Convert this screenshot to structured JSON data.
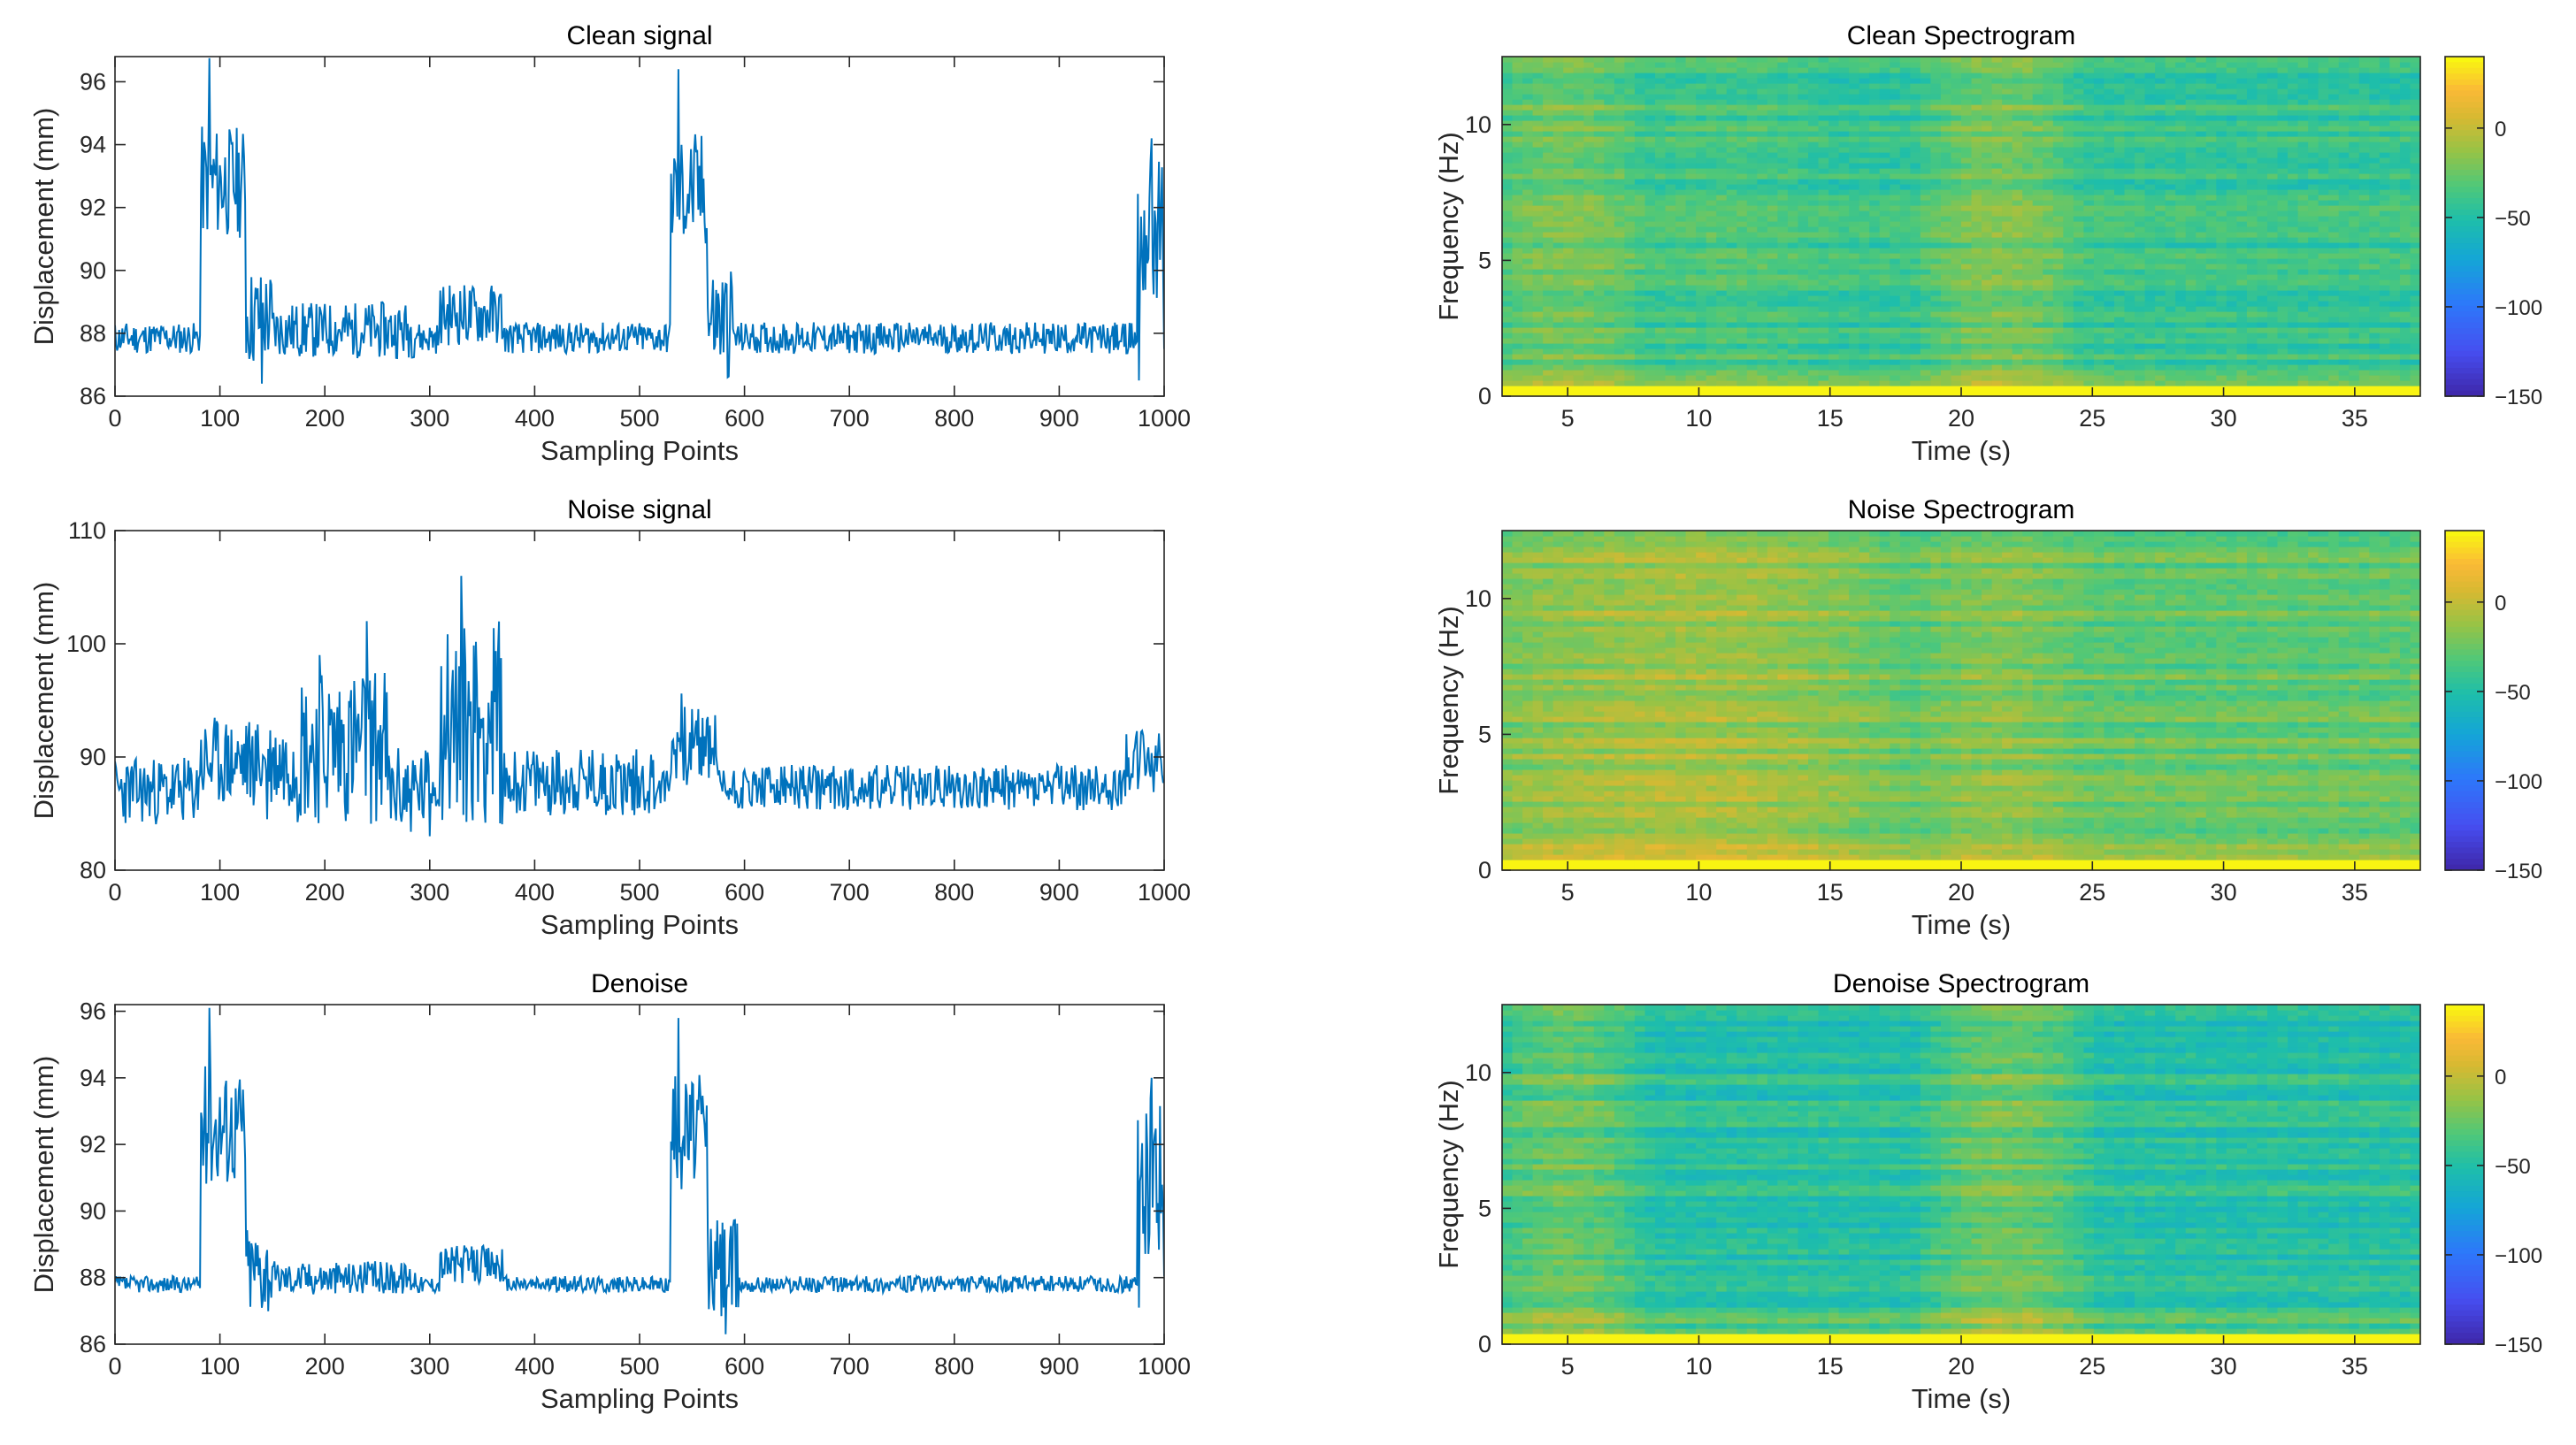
{
  "figure": {
    "description_colors": {
      "line": "#0072BD",
      "background": "#FFFFFF",
      "axes": "#262626"
    }
  },
  "chart_data": [
    {
      "id": "clean_signal",
      "type": "line",
      "title": "Clean signal",
      "xlabel": "Sampling Points",
      "ylabel": "Displacement (mm)",
      "xlim": [
        0,
        1000
      ],
      "ylim": [
        86,
        96.8
      ],
      "xticks": [
        "0",
        "100",
        "200",
        "300",
        "400",
        "500",
        "600",
        "700",
        "800",
        "900",
        "1000"
      ],
      "yticks": [
        "86",
        "88",
        "90",
        "92",
        "94",
        "96"
      ],
      "ytick_values": [
        86,
        88,
        90,
        92,
        94,
        96
      ],
      "color": "#0072BD",
      "base": 87.85,
      "noise_amp": 0.5,
      "seed": 11,
      "events": [
        {
          "from": 82,
          "to": 125,
          "level": 92.8,
          "amp": 1.8
        },
        {
          "from": 125,
          "to": 150,
          "level": 88.5,
          "amp": 1.6
        },
        {
          "from": 150,
          "to": 290,
          "level": 88.1,
          "amp": 0.9
        },
        {
          "from": 310,
          "to": 370,
          "level": 88.6,
          "amp": 1.0
        },
        {
          "from": 530,
          "to": 565,
          "level": 92.5,
          "amp": 1.9
        },
        {
          "from": 565,
          "to": 590,
          "level": 88.4,
          "amp": 1.8
        },
        {
          "from": 975,
          "to": 1000,
          "level": 91.2,
          "amp": 2.4
        }
      ],
      "spikes": [
        {
          "x": 90,
          "y": 96.8
        },
        {
          "x": 537,
          "y": 96.4
        },
        {
          "x": 140,
          "y": 86.4
        },
        {
          "x": 584,
          "y": 86.6
        },
        {
          "x": 976,
          "y": 86.5
        },
        {
          "x": 988,
          "y": 94.2
        }
      ]
    },
    {
      "id": "noise_signal",
      "type": "line",
      "title": "Noise signal",
      "xlabel": "Sampling Points",
      "ylabel": "Displacement (mm)",
      "xlim": [
        0,
        1000
      ],
      "ylim": [
        80,
        110
      ],
      "xticks": [
        "0",
        "100",
        "200",
        "300",
        "400",
        "500",
        "600",
        "700",
        "800",
        "900",
        "1000"
      ],
      "yticks": [
        "80",
        "90",
        "100",
        "110"
      ],
      "ytick_values": [
        80,
        90,
        100,
        110
      ],
      "color": "#0072BD",
      "base": 87.3,
      "noise_amp": 2.0,
      "seed": 23,
      "events": [
        {
          "from": 0,
          "to": 80,
          "level": 87.0,
          "amp": 3.0
        },
        {
          "from": 80,
          "to": 170,
          "level": 89.5,
          "amp": 4.0
        },
        {
          "from": 170,
          "to": 260,
          "level": 91.0,
          "amp": 7.0
        },
        {
          "from": 260,
          "to": 300,
          "level": 87.0,
          "amp": 4.0
        },
        {
          "from": 310,
          "to": 370,
          "level": 93.0,
          "amp": 9.0
        },
        {
          "from": 370,
          "to": 520,
          "level": 87.8,
          "amp": 3.0
        },
        {
          "from": 530,
          "to": 575,
          "level": 91.0,
          "amp": 3.5
        },
        {
          "from": 960,
          "to": 1000,
          "level": 89.5,
          "amp": 3.0
        }
      ],
      "spikes": [
        {
          "x": 330,
          "y": 106.0
        },
        {
          "x": 240,
          "y": 102.0
        },
        {
          "x": 195,
          "y": 99.0
        },
        {
          "x": 540,
          "y": 95.6
        },
        {
          "x": 300,
          "y": 83.0
        },
        {
          "x": 145,
          "y": 84.5
        }
      ]
    },
    {
      "id": "denoise_signal",
      "type": "line",
      "title": "Denoise",
      "xlabel": "Sampling Points",
      "ylabel": "Displacement (mm)",
      "xlim": [
        0,
        1000
      ],
      "ylim": [
        86,
        96.2
      ],
      "xticks": [
        "0",
        "100",
        "200",
        "300",
        "400",
        "500",
        "600",
        "700",
        "800",
        "900",
        "1000"
      ],
      "yticks": [
        "86",
        "88",
        "90",
        "92",
        "94",
        "96"
      ],
      "ytick_values": [
        86,
        88,
        90,
        92,
        94,
        96
      ],
      "color": "#0072BD",
      "base": 87.8,
      "noise_amp": 0.25,
      "seed": 37,
      "events": [
        {
          "from": 82,
          "to": 125,
          "level": 92.6,
          "amp": 1.8
        },
        {
          "from": 125,
          "to": 150,
          "level": 88.3,
          "amp": 1.4
        },
        {
          "from": 150,
          "to": 290,
          "level": 88.0,
          "amp": 0.5
        },
        {
          "from": 310,
          "to": 370,
          "level": 88.4,
          "amp": 0.6
        },
        {
          "from": 530,
          "to": 565,
          "level": 92.4,
          "amp": 1.8
        },
        {
          "from": 565,
          "to": 595,
          "level": 88.3,
          "amp": 1.6
        },
        {
          "from": 975,
          "to": 1000,
          "level": 91.0,
          "amp": 2.4
        }
      ],
      "spikes": [
        {
          "x": 90,
          "y": 96.1
        },
        {
          "x": 537,
          "y": 95.8
        },
        {
          "x": 582,
          "y": 86.3
        },
        {
          "x": 976,
          "y": 87.1
        },
        {
          "x": 988,
          "y": 94.0
        }
      ]
    },
    {
      "id": "clean_spectrogram",
      "type": "heatmap",
      "title": "Clean Spectrogram",
      "xlabel": "Time (s)",
      "ylabel": "Frequency (Hz)",
      "xlim": [
        2.5,
        37.5
      ],
      "ylim": [
        0,
        12.5
      ],
      "clim": [
        -150,
        40
      ],
      "xticks": [
        "5",
        "10",
        "15",
        "20",
        "25",
        "30",
        "35"
      ],
      "xtick_values": [
        5,
        10,
        15,
        20,
        25,
        30,
        35
      ],
      "yticks": [
        "0",
        "5",
        "10"
      ],
      "ytick_values": [
        0,
        5,
        10
      ],
      "colorbar_ticks": [
        "0",
        "-50",
        "-100",
        "-150"
      ],
      "colorbar_tick_values": [
        0,
        -50,
        -100,
        -150
      ],
      "base_level": -42,
      "warm_times": [
        [
          2.5,
          7.5,
          18
        ],
        [
          19,
          24,
          20
        ],
        [
          8,
          14,
          6
        ]
      ],
      "seed": 5
    },
    {
      "id": "noise_spectrogram",
      "type": "heatmap",
      "title": "Noise Spectrogram",
      "xlabel": "Time (s)",
      "ylabel": "Frequency (Hz)",
      "xlim": [
        2.5,
        37.5
      ],
      "ylim": [
        0,
        12.5
      ],
      "clim": [
        -150,
        40
      ],
      "xticks": [
        "5",
        "10",
        "15",
        "20",
        "25",
        "30",
        "35"
      ],
      "xtick_values": [
        5,
        10,
        15,
        20,
        25,
        30,
        35
      ],
      "yticks": [
        "0",
        "5",
        "10"
      ],
      "ytick_values": [
        0,
        5,
        10
      ],
      "colorbar_ticks": [
        "0",
        "-50",
        "-100",
        "-150"
      ],
      "colorbar_tick_values": [
        0,
        -50,
        -100,
        -150
      ],
      "base_level": -28,
      "warm_times": [
        [
          2.5,
          16,
          18
        ],
        [
          19,
          24,
          10
        ],
        [
          8,
          14,
          12
        ]
      ],
      "seed": 9
    },
    {
      "id": "denoise_spectrogram",
      "type": "heatmap",
      "title": "Denoise Spectrogram",
      "xlabel": "Time (s)",
      "ylabel": "Frequency (Hz)",
      "xlim": [
        2.5,
        37.5
      ],
      "ylim": [
        0,
        12.5
      ],
      "clim": [
        -150,
        40
      ],
      "xticks": [
        "5",
        "10",
        "15",
        "20",
        "25",
        "30",
        "35"
      ],
      "xtick_values": [
        5,
        10,
        15,
        20,
        25,
        30,
        35
      ],
      "yticks": [
        "0",
        "5",
        "10"
      ],
      "ytick_values": [
        0,
        5,
        10
      ],
      "colorbar_ticks": [
        "0",
        "-50",
        "-100",
        "-150"
      ],
      "colorbar_tick_values": [
        0,
        -50,
        -100,
        -150
      ],
      "base_level": -48,
      "warm_times": [
        [
          2.5,
          7.5,
          22
        ],
        [
          19,
          24.5,
          24
        ]
      ],
      "seed": 14
    }
  ]
}
